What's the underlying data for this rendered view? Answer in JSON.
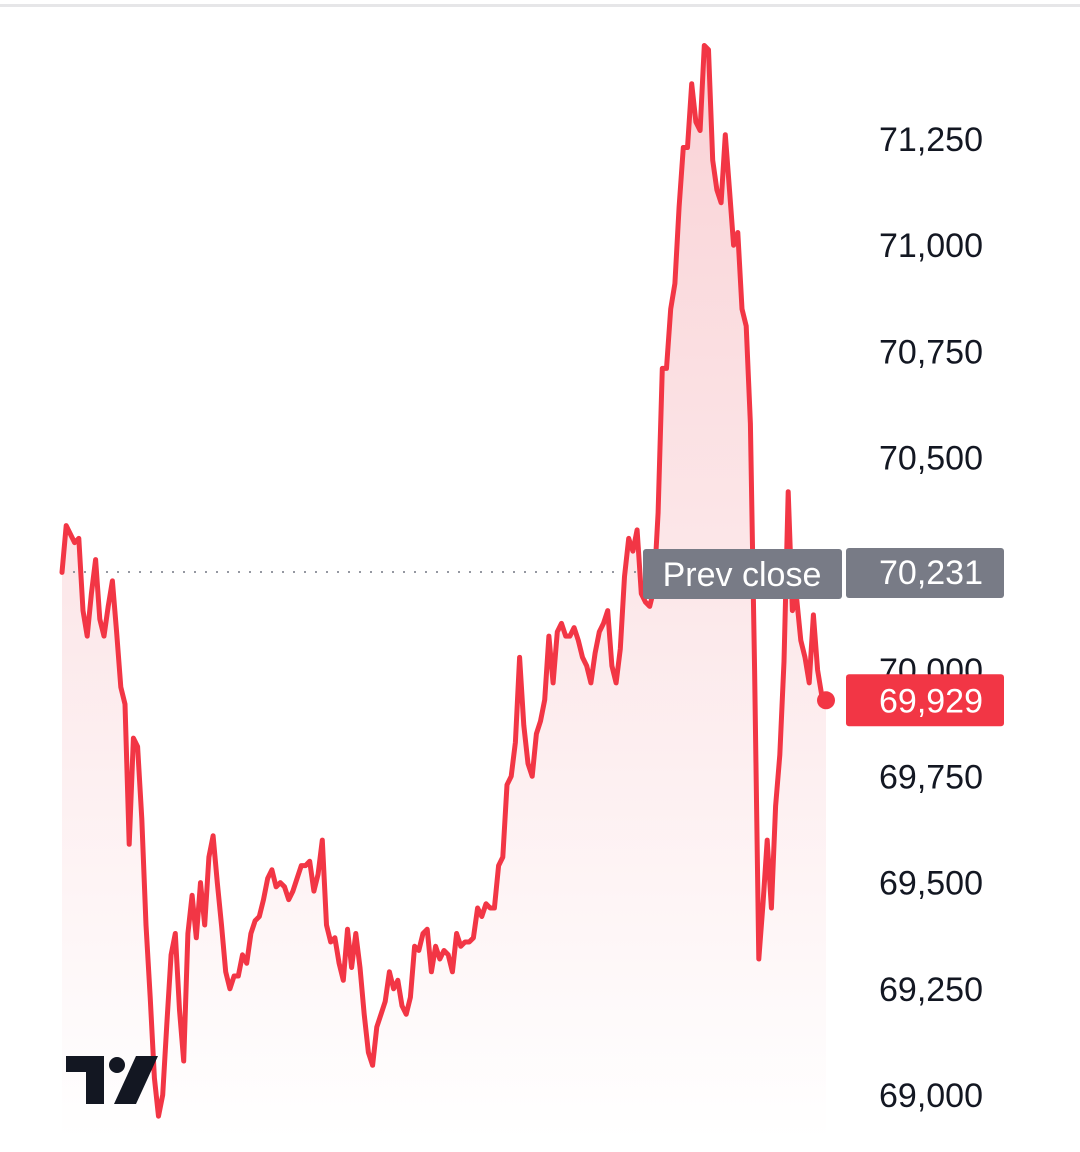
{
  "chart_data": {
    "type": "area",
    "title": "",
    "xlabel": "",
    "ylabel": "",
    "ylim": [
      68920,
      71480
    ],
    "y_ticks": [
      "71,250",
      "71,000",
      "70,750",
      "70,500",
      "70,000",
      "69,750",
      "69,500",
      "69,250",
      "69,000"
    ],
    "y_tick_values": [
      71250,
      71000,
      70750,
      70500,
      70000,
      69750,
      69500,
      69250,
      69000
    ],
    "grid": false,
    "legend": "none",
    "series": [
      {
        "values": [
          70230,
          70340,
          70320,
          70300,
          70310,
          70140,
          70080,
          70180,
          70260,
          70120,
          70080,
          70150,
          70210,
          70090,
          69960,
          69920,
          69590,
          69840,
          69820,
          69650,
          69400,
          69230,
          69040,
          68950,
          69000,
          69170,
          69330,
          69380,
          69200,
          69080,
          69380,
          69470,
          69370,
          69500,
          69400,
          69560,
          69610,
          69500,
          69400,
          69290,
          69250,
          69280,
          69280,
          69330,
          69310,
          69380,
          69410,
          69420,
          69460,
          69510,
          69530,
          69490,
          69500,
          69490,
          69460,
          69480,
          69510,
          69540,
          69540,
          69550,
          69480,
          69520,
          69600,
          69400,
          69360,
          69370,
          69310,
          69270,
          69390,
          69300,
          69380,
          69300,
          69190,
          69100,
          69070,
          69160,
          69190,
          69220,
          69290,
          69250,
          69270,
          69210,
          69190,
          69230,
          69350,
          69340,
          69380,
          69390,
          69290,
          69350,
          69320,
          69340,
          69330,
          69290,
          69380,
          69350,
          69360,
          69360,
          69370,
          69440,
          69420,
          69450,
          69440,
          69440,
          69540,
          69560,
          69730,
          69750,
          69830,
          70030,
          69870,
          69780,
          69750,
          69850,
          69880,
          69930,
          70080,
          69970,
          70090,
          70110,
          70080,
          70080,
          70100,
          70070,
          70030,
          70010,
          69970,
          70040,
          70090,
          70110,
          70140,
          70010,
          69970,
          70050,
          70220,
          70310,
          70280,
          70330,
          70180,
          70160,
          70150,
          70190,
          70370,
          70710,
          70710,
          70850,
          70910,
          71090,
          71230,
          71230,
          71380,
          71290,
          71270,
          71470,
          71460,
          71200,
          71130,
          71100,
          71260,
          71130,
          71000,
          71030,
          70850,
          70810,
          70580,
          70000,
          69320,
          69450,
          69600,
          69440,
          69680,
          69800,
          70020,
          70420,
          70140,
          70170,
          70070,
          70030,
          69970,
          70130,
          70000,
          69940,
          69929
        ]
      }
    ],
    "last_value": 69929,
    "last_value_label": "69,929",
    "prev_close": 70231,
    "prev_close_label": "Prev close",
    "prev_close_value_label": "70,231",
    "colors": {
      "line": "#f23645",
      "area_top": "#f9d0d4",
      "area_bottom": "#ffffff",
      "prev_close_badge": "#787b86",
      "last_value_badge": "#f23645",
      "text": "#131722",
      "dotted_line": "#9598a1"
    }
  },
  "watermark": "TV"
}
